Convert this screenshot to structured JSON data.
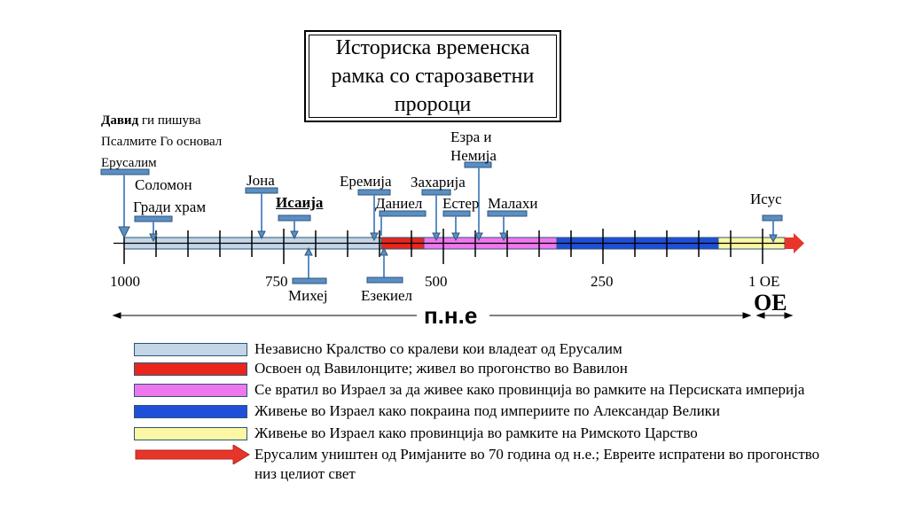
{
  "title": "Историска временска\nрамка со старозаветни\nпророци",
  "david": {
    "name": "Давид",
    "line1_rest": " ги пишува",
    "line2": "Псалмите Го основал",
    "line3": "Ерусалим"
  },
  "prophets_above": {
    "solomon1": "Соломон",
    "solomon2": "Гради храм",
    "jona": "Јона",
    "isaija": "Исаија",
    "eremija": "Еремија",
    "daniel": "Даниел",
    "zaharija": "Захарија",
    "ester": "Естер",
    "ezra": "Езра и",
    "nemija": "Немија",
    "malahi": "Малахи",
    "isus": "Исус"
  },
  "prophets_below": {
    "mihej": "Михеј",
    "ezekiel": "Езекиел"
  },
  "ticks": {
    "t1000": "1000",
    "t750": "750",
    "t500": "500",
    "t250": "250",
    "t1": "1 ОЕ"
  },
  "era_bc": "п.н.е",
  "era_ad": "ОЕ",
  "legend": [
    {
      "text": "Независно Кралство со кралеви кои владеат од Ерусалим",
      "color": "#c3d5e6"
    },
    {
      "text": "Освоен од Вавилонците; живел во прогонство во Вавилон",
      "color": "#e8261c"
    },
    {
      "text": "Се вратил во Израел за да живее како провинција во рамките на Персиската империја",
      "color": "#ee77ee"
    },
    {
      "text": "Живење во Израел како покраина под империите по Александар Велики",
      "color": "#1f4fd8"
    },
    {
      "text": "Живење во Израел како провинција во рамките на Римското Царство",
      "color": "#fbf7a4"
    },
    {
      "text": "Ерусалим уништен од Римјаните во 70 година од н.е.; Евреите испратени во прогонство",
      "text2": "низ целиот свет",
      "color": "#e8352a"
    }
  ],
  "colors": {
    "marker": "#5b8fc4",
    "outline": "#2c5577"
  }
}
